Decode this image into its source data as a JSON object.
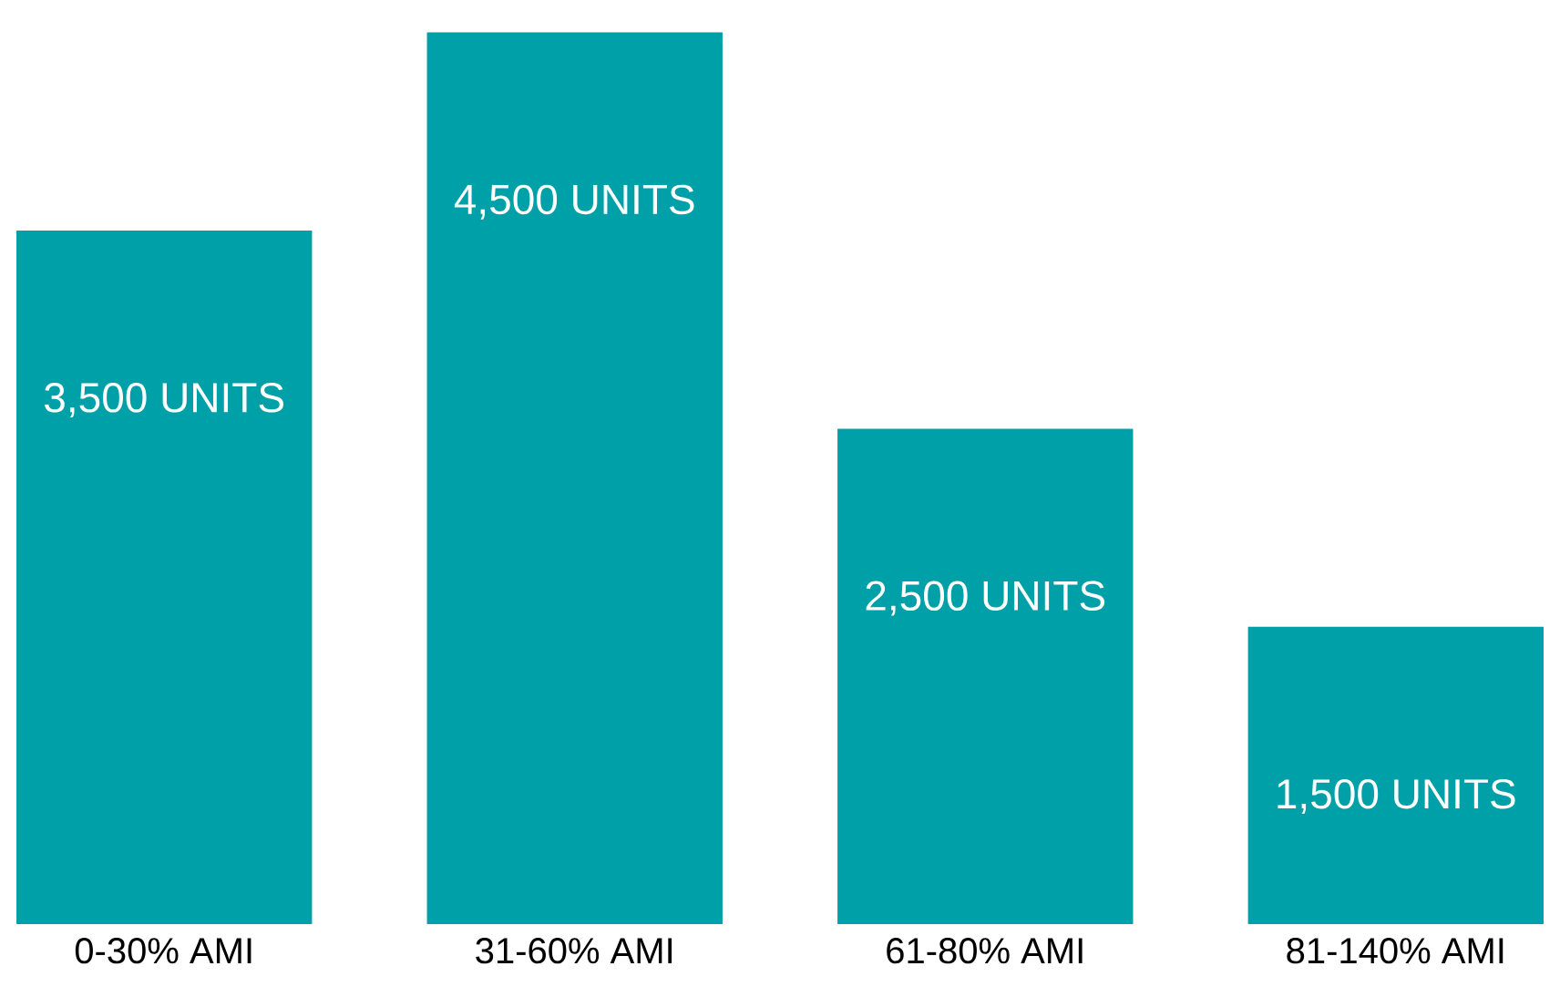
{
  "chart_data": {
    "type": "bar",
    "categories": [
      "0-30% AMI",
      "31-60% AMI",
      "61-80% AMI",
      "81-140% AMI"
    ],
    "values": [
      3500,
      4500,
      2500,
      1500
    ],
    "color": "#00a0a8",
    "value_labels": [
      "3,500 UNITS",
      "4,500 UNITS",
      "2,500 UNITS",
      "1,500 UNITS"
    ]
  }
}
